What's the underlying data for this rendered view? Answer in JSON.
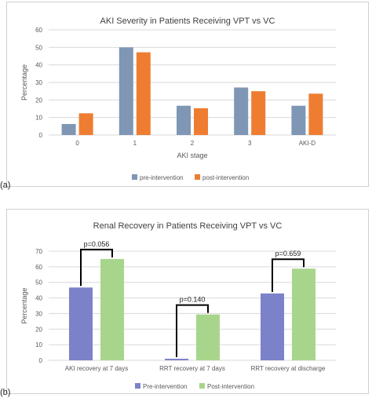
{
  "panel_labels": [
    "(a)",
    "(b)"
  ],
  "chart_data": [
    {
      "type": "bar",
      "title": "AKI Severity in Patients Receiving VPT vs VC",
      "xlabel": "AKI stage",
      "ylabel": "Percentage",
      "ylim": [
        0,
        60
      ],
      "yticks": [
        "0",
        "10",
        "20",
        "30",
        "40",
        "50",
        "60"
      ],
      "grid": true,
      "legend_position": "bottom",
      "categories": [
        "0",
        "1",
        "2",
        "3",
        "AKI-D"
      ],
      "series": [
        {
          "name": "pre-intervention",
          "color": "#7f96b5",
          "values": [
            6.3,
            50,
            16.7,
            27.1,
            16.7
          ]
        },
        {
          "name": "post-intervention",
          "color": "#ee7d31",
          "values": [
            12.4,
            47.2,
            15.3,
            25,
            23.6
          ]
        }
      ]
    },
    {
      "type": "bar",
      "title": "Renal Recovery in Patients Receiving VPT vs VC",
      "xlabel": "",
      "ylabel": "Percentage",
      "ylim": [
        0,
        70
      ],
      "yticks": [
        "0",
        "10",
        "20",
        "30",
        "40",
        "50",
        "60",
        "70"
      ],
      "grid": true,
      "legend_position": "bottom",
      "categories": [
        "AKI recovery at 7 days",
        "RRT recovery at 7 days",
        "RRT recovery at discharge"
      ],
      "series": [
        {
          "name": "Pre-intervention",
          "color": "#7b82c9",
          "values": [
            46.7,
            1,
            42.9
          ]
        },
        {
          "name": "Post-intervention",
          "color": "#a8d58c",
          "values": [
            65,
            29.4,
            58.8
          ]
        }
      ],
      "annotations": [
        "p=0.056",
        "p=0.140",
        "p=0.659"
      ]
    }
  ]
}
